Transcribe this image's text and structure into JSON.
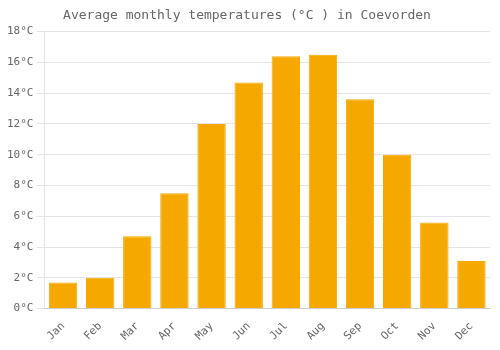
{
  "chart_data": {
    "type": "bar",
    "title": "Average monthly temperatures (°C ) in Coevorden",
    "categories": [
      "Jan",
      "Feb",
      "Mar",
      "Apr",
      "May",
      "Jun",
      "Jul",
      "Aug",
      "Sep",
      "Oct",
      "Nov",
      "Dec"
    ],
    "values": [
      1.7,
      2.0,
      4.7,
      7.5,
      12.0,
      14.7,
      16.4,
      16.5,
      13.6,
      10.0,
      5.6,
      3.1
    ],
    "color": "#F5A800",
    "ylim": [
      0,
      18
    ],
    "yticks": [
      {
        "value": 0,
        "label": "0°C"
      },
      {
        "value": 2,
        "label": "2°C"
      },
      {
        "value": 4,
        "label": "4°C"
      },
      {
        "value": 6,
        "label": "6°C"
      },
      {
        "value": 8,
        "label": "8°C"
      },
      {
        "value": 10,
        "label": "10°C"
      },
      {
        "value": 12,
        "label": "12°C"
      },
      {
        "value": 14,
        "label": "14°C"
      },
      {
        "value": 16,
        "label": "16°C"
      },
      {
        "value": 18,
        "label": "18°C"
      }
    ],
    "grid": true
  }
}
